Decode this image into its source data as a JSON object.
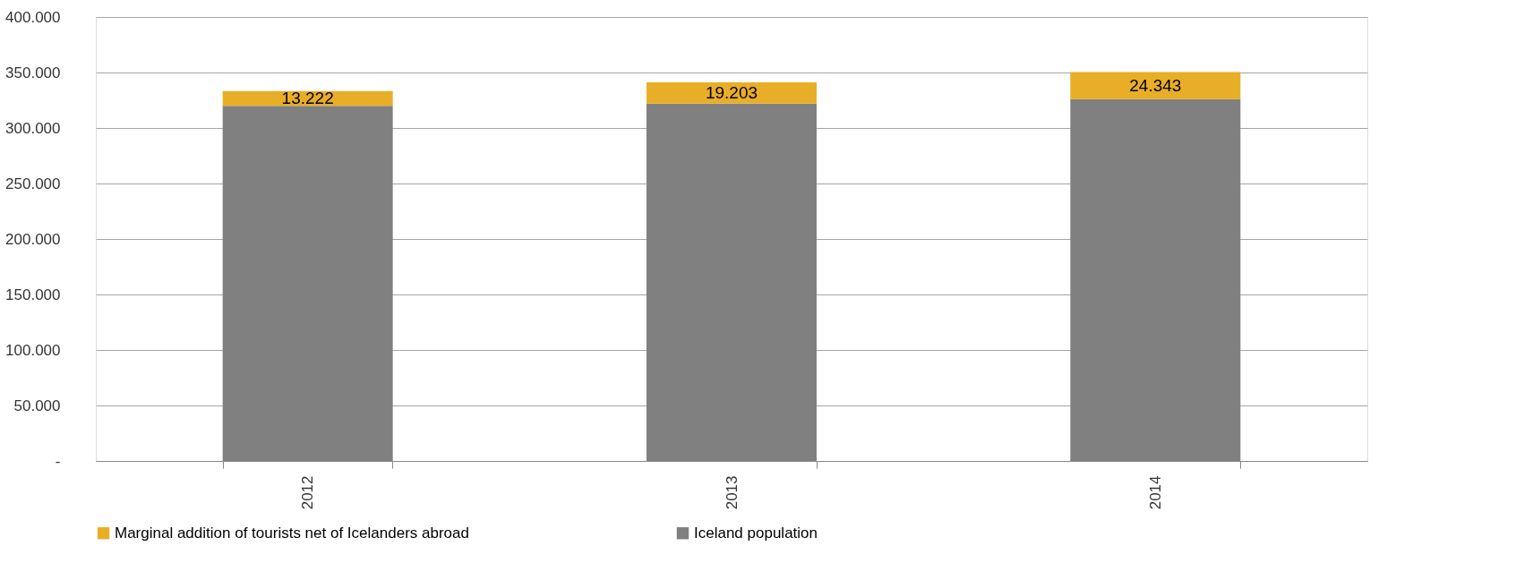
{
  "chart_data": {
    "type": "bar",
    "stacked": true,
    "categories": [
      "2012",
      "2013",
      "2014"
    ],
    "series": [
      {
        "name": "Iceland population",
        "color": "#808080",
        "values": [
          320000,
          322000,
          326000
        ]
      },
      {
        "name": "Marginal addition of tourists net of Icelanders abroad",
        "color": "#e9ae27",
        "values": [
          13222,
          19203,
          24343
        ],
        "value_labels": [
          "13.222",
          "19.203",
          "24.343"
        ]
      }
    ],
    "ylim": [
      0,
      400000
    ],
    "yticks": [
      {
        "value": 0,
        "label": "-"
      },
      {
        "value": 50000,
        "label": "50.000"
      },
      {
        "value": 100000,
        "label": "100.000"
      },
      {
        "value": 150000,
        "label": "150.000"
      },
      {
        "value": 200000,
        "label": "200.000"
      },
      {
        "value": 250000,
        "label": "250.000"
      },
      {
        "value": 300000,
        "label": "300.000"
      },
      {
        "value": 350000,
        "label": "350.000"
      },
      {
        "value": 400000,
        "label": "400.000"
      }
    ],
    "grid": "y",
    "legend": "bottom"
  }
}
